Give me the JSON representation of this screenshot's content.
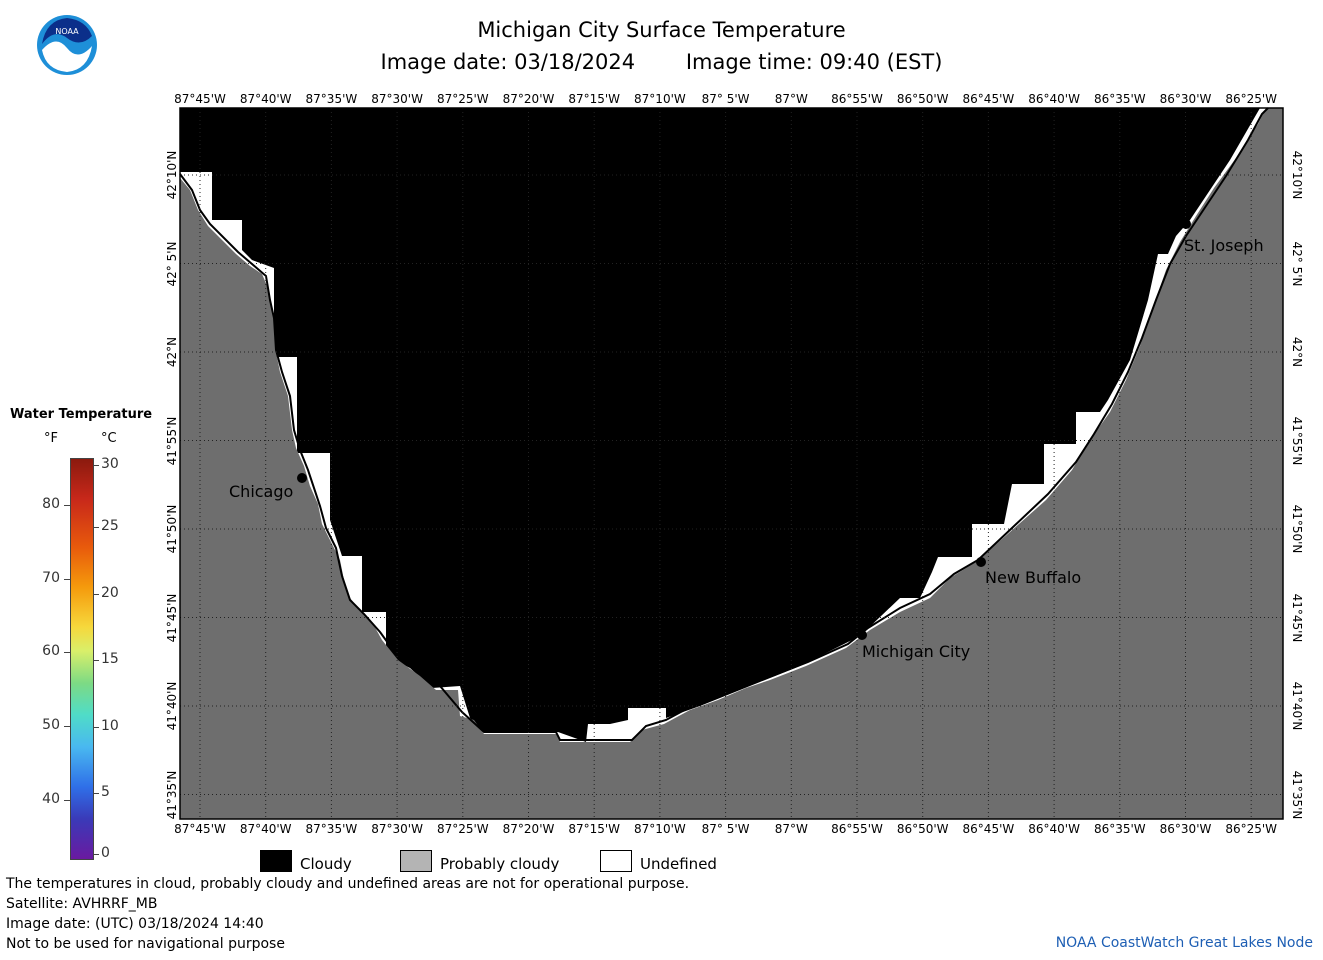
{
  "header": {
    "title": "Michigan City Surface Temperature",
    "image_date": "Image date: 03/18/2024",
    "image_time": "Image time: 09:40 (EST)"
  },
  "logo": {
    "text": "NOAA"
  },
  "map": {
    "lon_labels": [
      "87°45'W",
      "87°40'W",
      "87°35'W",
      "87°30'W",
      "87°25'W",
      "87°20'W",
      "87°15'W",
      "87°10'W",
      "87° 5'W",
      "87°W",
      "86°55'W",
      "86°50'W",
      "86°45'W",
      "86°40'W",
      "86°35'W",
      "86°30'W",
      "86°25'W"
    ],
    "lat_labels": [
      "42°10'N",
      "42° 5'N",
      "42°N",
      "41°55'N",
      "41°50'N",
      "41°45'N",
      "41°40'N",
      "41°35'N"
    ],
    "cities": {
      "chicago": "Chicago",
      "st_joseph": "St. Joseph",
      "new_buffalo": "New Buffalo",
      "michigan_city": "Michigan City"
    },
    "colors": {
      "cloudy": "#000000",
      "probably_cloudy": "#6e6e6e",
      "undefined": "#ffffff"
    }
  },
  "legend": {
    "title": "Water Temperature",
    "unit_f": "°F",
    "unit_c": "°C",
    "ticks_f": [
      "80",
      "70",
      "60",
      "50",
      "40"
    ],
    "ticks_c": [
      "30",
      "25",
      "20",
      "15",
      "10",
      "5",
      "0"
    ],
    "keys": {
      "cloudy": "Cloudy",
      "probably_cloudy": "Probably cloudy",
      "undefined": "Undefined"
    }
  },
  "footer": {
    "line1": "The temperatures in cloud, probably cloudy and undefined areas are not for operational purpose.",
    "line2": "Satellite: AVHRRF_MB",
    "line3": "Image date: (UTC) 03/18/2024  14:40",
    "line4": "Not to be used for navigational purpose",
    "credit": "NOAA CoastWatch Great Lakes Node"
  }
}
